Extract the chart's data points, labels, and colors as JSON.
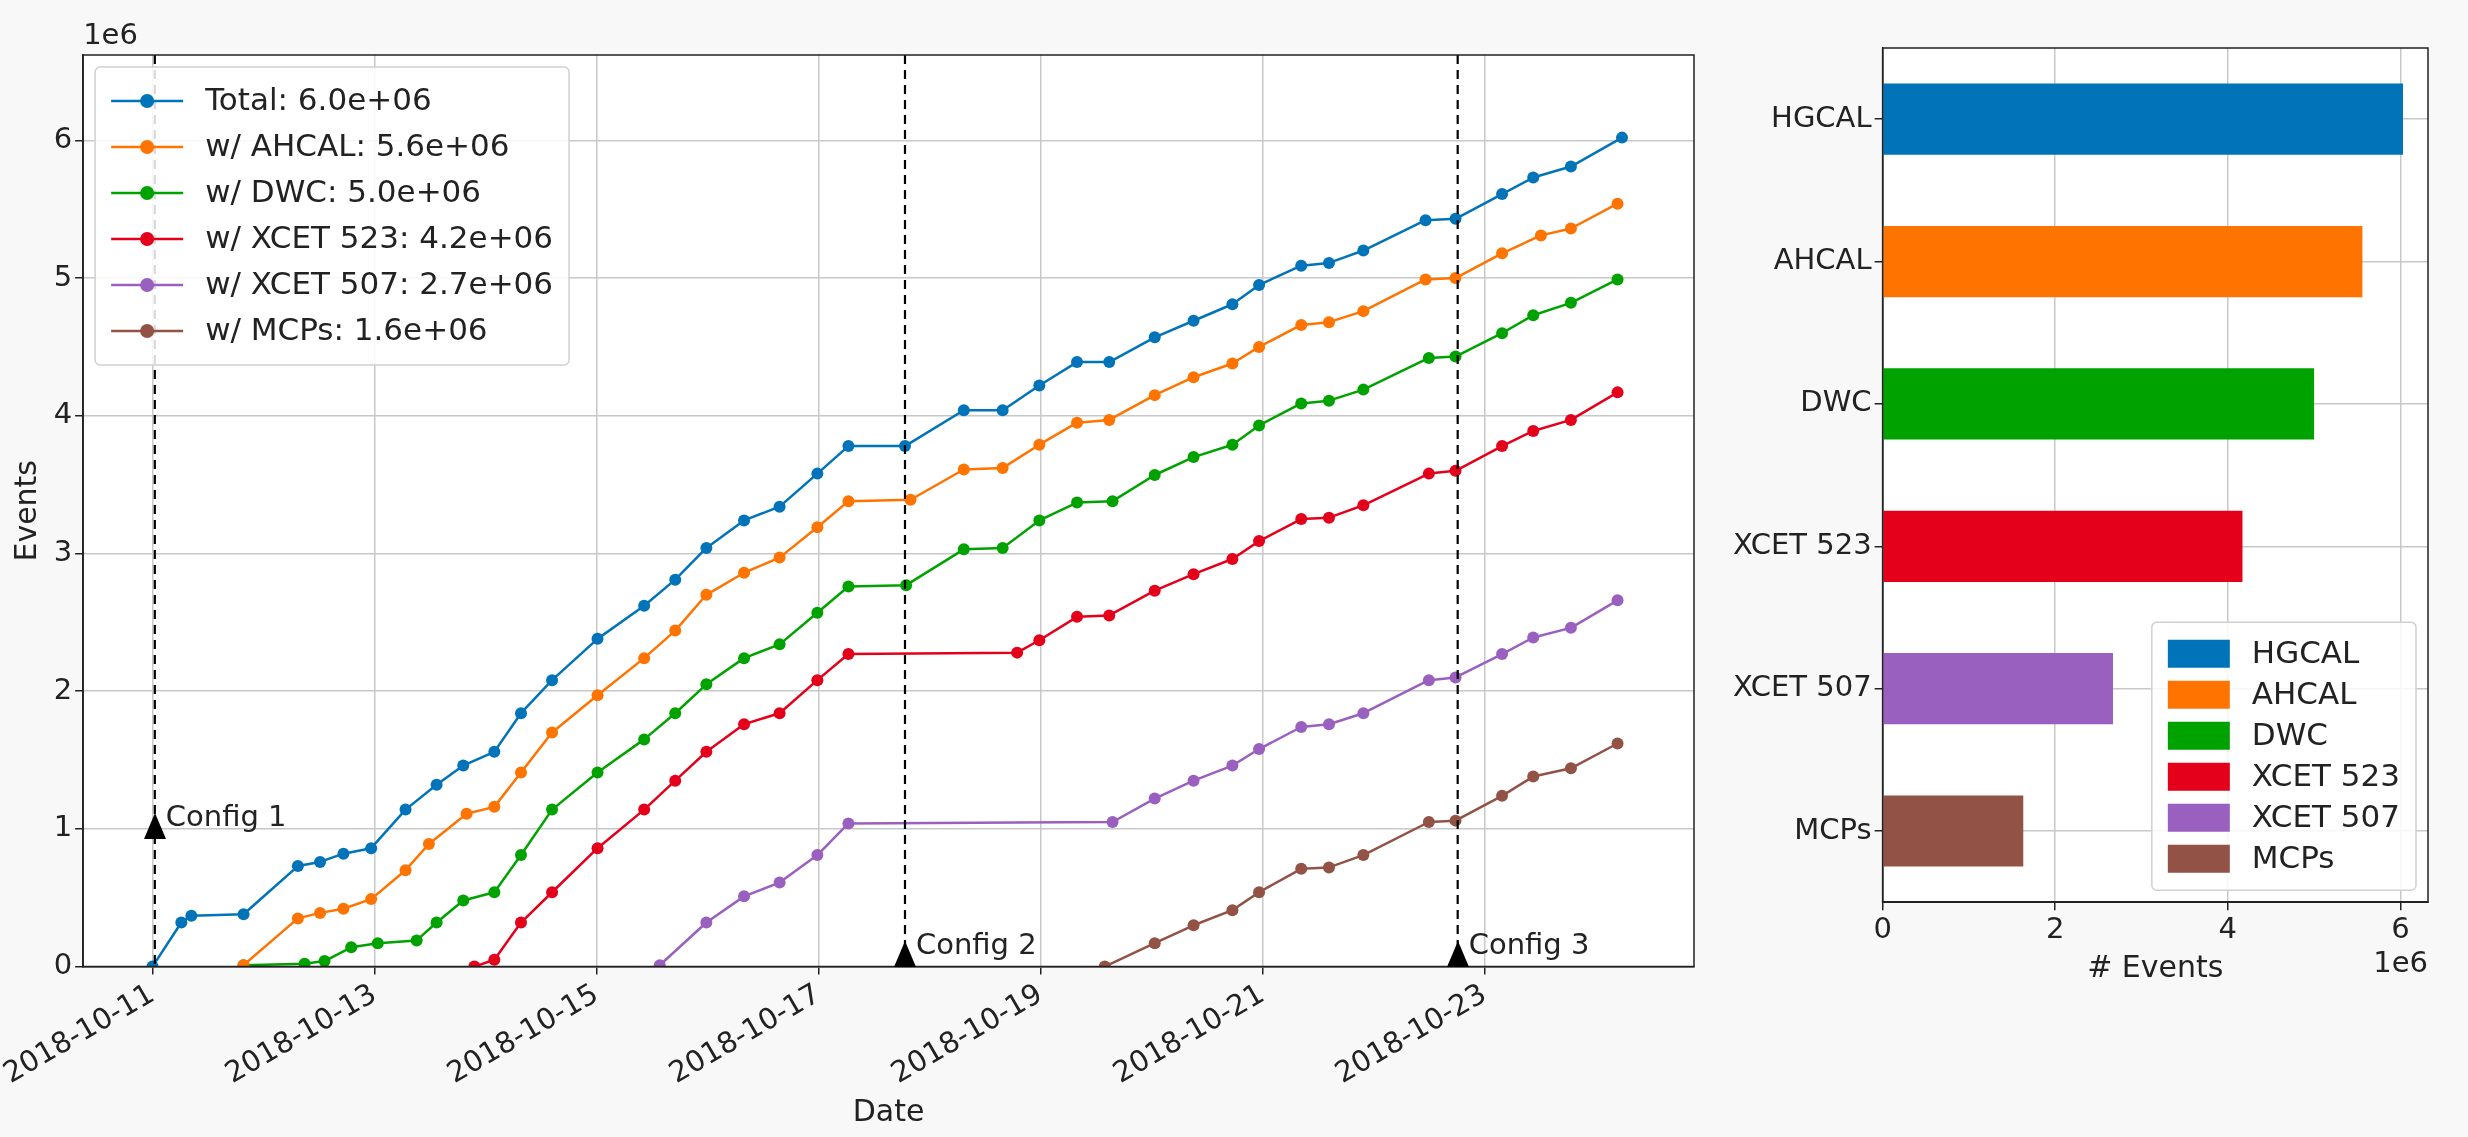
{
  "chart_data": [
    {
      "type": "line",
      "xlabel": "Date",
      "ylabel": "Events",
      "annotations": [
        "1e6",
        {
          "text": "Config 1",
          "x": "2018-10-11T00:30",
          "y": 0.93
        },
        {
          "text": "Config 2",
          "x": "2018-10-17T18:43",
          "y": 0
        },
        {
          "text": "Config 3",
          "x": "2018-10-22T18:14",
          "y": 0
        }
      ],
      "xlim": [
        "2018-10-10T09:00",
        "2018-10-24T21:20"
      ],
      "xticks": [
        "2018-10-11",
        "2018-10-13",
        "2018-10-15",
        "2018-10-17",
        "2018-10-19",
        "2018-10-21",
        "2018-10-23"
      ],
      "ylim": [
        0,
        6.62
      ],
      "yticks": [
        0,
        1,
        2,
        3,
        4,
        5,
        6
      ],
      "grid": true,
      "legend": "top left",
      "marker": "circle",
      "line_style": "solid",
      "ref_lines": [
        {
          "axis": "x",
          "value": "2018-10-11T00:30",
          "color": "#000000",
          "line_style": "dashed"
        },
        {
          "axis": "x",
          "value": "2018-10-17T18:43",
          "color": "#000000",
          "line_style": "dashed"
        },
        {
          "axis": "x",
          "value": "2018-10-22T18:14",
          "color": "#000000",
          "line_style": "dashed"
        }
      ],
      "series": [
        {
          "name": "Total: 6.0e+06",
          "color": "#0173b8",
          "x": [
            "2018-10-11T00:00",
            "2018-10-11T06:14",
            "2018-10-11T08:24",
            "2018-10-11T19:41",
            "2018-10-12T07:26",
            "2018-10-12T12:14",
            "2018-10-12T17:17",
            "2018-10-12T23:17",
            "2018-10-13T06:43",
            "2018-10-13T13:26",
            "2018-10-13T19:12",
            "2018-10-14T01:55",
            "2018-10-14T07:41",
            "2018-10-14T14:24",
            "2018-10-15T00:14",
            "2018-10-15T10:19",
            "2018-10-15T17:02",
            "2018-10-15T23:46",
            "2018-10-16T07:55",
            "2018-10-16T15:36",
            "2018-10-16T23:46",
            "2018-10-17T06:29",
            "2018-10-17T18:43",
            "2018-10-18T07:26",
            "2018-10-18T15:50",
            "2018-10-18T23:46",
            "2018-10-19T07:55",
            "2018-10-19T14:53",
            "2018-10-20T00:43",
            "2018-10-20T09:07",
            "2018-10-20T17:31",
            "2018-10-20T23:17",
            "2018-10-21T08:24",
            "2018-10-21T14:24",
            "2018-10-21T21:50",
            "2018-10-22T11:17",
            "2018-10-22T17:46",
            "2018-10-23T03:50",
            "2018-10-23T10:34",
            "2018-10-23T18:43",
            "2018-10-24T05:46"
          ],
          "values": [
            0,
            0.32,
            0.37,
            0.38,
            0.73,
            0.76,
            0.82,
            0.86,
            1.14,
            1.32,
            1.46,
            1.56,
            1.84,
            2.08,
            2.38,
            2.62,
            2.81,
            3.04,
            3.24,
            3.34,
            3.58,
            3.78,
            3.78,
            4.04,
            4.04,
            4.22,
            4.39,
            4.39,
            4.57,
            4.69,
            4.81,
            4.95,
            5.09,
            5.11,
            5.2,
            5.42,
            5.43,
            5.61,
            5.73,
            5.81,
            6.02
          ]
        },
        {
          "name": "w/ AHCAL: 5.6e+06",
          "color": "#ff7400",
          "x": [
            "2018-10-11T19:41",
            "2018-10-12T07:26",
            "2018-10-12T12:14",
            "2018-10-12T17:17",
            "2018-10-12T23:17",
            "2018-10-13T06:43",
            "2018-10-13T11:46",
            "2018-10-13T19:55",
            "2018-10-14T01:55",
            "2018-10-14T07:41",
            "2018-10-14T14:24",
            "2018-10-15T00:14",
            "2018-10-15T10:19",
            "2018-10-15T17:02",
            "2018-10-15T23:46",
            "2018-10-16T07:55",
            "2018-10-16T15:36",
            "2018-10-16T23:46",
            "2018-10-17T06:29",
            "2018-10-17T19:55",
            "2018-10-18T07:26",
            "2018-10-18T15:50",
            "2018-10-18T23:46",
            "2018-10-19T07:55",
            "2018-10-19T14:53",
            "2018-10-20T00:43",
            "2018-10-20T09:07",
            "2018-10-20T17:31",
            "2018-10-20T23:17",
            "2018-10-21T08:24",
            "2018-10-21T14:24",
            "2018-10-21T21:50",
            "2018-10-22T11:17",
            "2018-10-22T17:46",
            "2018-10-23T03:50",
            "2018-10-23T12:14",
            "2018-10-23T18:43",
            "2018-10-24T04:48"
          ],
          "values": [
            0.01,
            0.35,
            0.39,
            0.42,
            0.49,
            0.7,
            0.89,
            1.11,
            1.16,
            1.41,
            1.7,
            1.97,
            2.24,
            2.44,
            2.7,
            2.86,
            2.97,
            3.19,
            3.38,
            3.39,
            3.61,
            3.62,
            3.79,
            3.95,
            3.97,
            4.15,
            4.28,
            4.38,
            4.5,
            4.66,
            4.68,
            4.76,
            4.99,
            5.0,
            5.18,
            5.31,
            5.36,
            5.54
          ]
        },
        {
          "name": "w/ DWC: 5.0e+06",
          "color": "#00a200",
          "x": [
            "2018-10-11T19:41",
            "2018-10-12T08:53",
            "2018-10-12T13:12",
            "2018-10-12T18:58",
            "2018-10-13T00:43",
            "2018-10-13T09:07",
            "2018-10-13T13:26",
            "2018-10-13T19:12",
            "2018-10-14T01:55",
            "2018-10-14T07:41",
            "2018-10-14T14:24",
            "2018-10-15T00:14",
            "2018-10-15T10:19",
            "2018-10-15T17:02",
            "2018-10-15T23:46",
            "2018-10-16T07:55",
            "2018-10-16T15:36",
            "2018-10-16T23:46",
            "2018-10-17T06:29",
            "2018-10-17T18:58",
            "2018-10-18T07:26",
            "2018-10-18T15:50",
            "2018-10-18T23:46",
            "2018-10-19T07:55",
            "2018-10-19T15:36",
            "2018-10-20T00:43",
            "2018-10-20T09:07",
            "2018-10-20T17:31",
            "2018-10-20T23:17",
            "2018-10-21T08:24",
            "2018-10-21T14:24",
            "2018-10-21T21:50",
            "2018-10-22T12:00",
            "2018-10-22T17:46",
            "2018-10-23T03:50",
            "2018-10-23T10:34",
            "2018-10-23T18:43",
            "2018-10-24T04:48"
          ],
          "values": [
            0.01,
            0.02,
            0.04,
            0.14,
            0.17,
            0.19,
            0.32,
            0.48,
            0.54,
            0.81,
            1.14,
            1.41,
            1.65,
            1.84,
            2.05,
            2.24,
            2.34,
            2.57,
            2.76,
            2.77,
            3.03,
            3.04,
            3.24,
            3.37,
            3.38,
            3.57,
            3.7,
            3.79,
            3.93,
            4.09,
            4.11,
            4.19,
            4.42,
            4.43,
            4.6,
            4.73,
            4.82,
            4.99
          ]
        },
        {
          "name": "w/ XCET 523: 4.2e+06",
          "color": "#e4001b",
          "x": [
            "2018-10-13T21:36",
            "2018-10-14T01:55",
            "2018-10-14T07:41",
            "2018-10-14T14:24",
            "2018-10-15T00:14",
            "2018-10-15T10:19",
            "2018-10-15T17:02",
            "2018-10-15T23:46",
            "2018-10-16T07:55",
            "2018-10-16T15:36",
            "2018-10-16T23:46",
            "2018-10-17T06:29",
            "2018-10-18T18:58",
            "2018-10-18T23:46",
            "2018-10-19T07:55",
            "2018-10-19T14:53",
            "2018-10-20T00:43",
            "2018-10-20T09:07",
            "2018-10-20T17:31",
            "2018-10-20T23:17",
            "2018-10-21T08:24",
            "2018-10-21T14:24",
            "2018-10-21T21:50",
            "2018-10-22T12:00",
            "2018-10-22T17:46",
            "2018-10-23T03:50",
            "2018-10-23T10:34",
            "2018-10-23T18:43",
            "2018-10-24T04:48"
          ],
          "values": [
            0,
            0.05,
            0.32,
            0.54,
            0.86,
            1.14,
            1.35,
            1.56,
            1.76,
            1.84,
            2.08,
            2.27,
            2.28,
            2.37,
            2.54,
            2.55,
            2.73,
            2.85,
            2.96,
            3.09,
            3.25,
            3.26,
            3.35,
            3.58,
            3.6,
            3.78,
            3.89,
            3.97,
            4.17
          ]
        },
        {
          "name": "w/ XCET 507: 2.7e+06",
          "color": "#9a60bf",
          "x": [
            "2018-10-15T13:41",
            "2018-10-15T23:46",
            "2018-10-16T07:55",
            "2018-10-16T15:36",
            "2018-10-16T23:46",
            "2018-10-17T06:29",
            "2018-10-19T15:36",
            "2018-10-20T00:43",
            "2018-10-20T09:07",
            "2018-10-20T17:31",
            "2018-10-20T23:17",
            "2018-10-21T08:24",
            "2018-10-21T14:24",
            "2018-10-21T21:50",
            "2018-10-22T12:00",
            "2018-10-22T17:46",
            "2018-10-23T03:50",
            "2018-10-23T10:34",
            "2018-10-23T18:43",
            "2018-10-24T04:48"
          ],
          "values": [
            0.01,
            0.32,
            0.51,
            0.61,
            0.81,
            1.04,
            1.05,
            1.22,
            1.35,
            1.46,
            1.58,
            1.74,
            1.76,
            1.84,
            2.08,
            2.1,
            2.27,
            2.39,
            2.46,
            2.66
          ]
        },
        {
          "name": "w/ MCPs: 1.6e+06",
          "color": "#925246",
          "x": [
            "2018-10-19T13:55",
            "2018-10-20T00:43",
            "2018-10-20T09:07",
            "2018-10-20T17:31",
            "2018-10-20T23:17",
            "2018-10-21T08:24",
            "2018-10-21T14:24",
            "2018-10-21T21:50",
            "2018-10-22T12:00",
            "2018-10-22T17:46",
            "2018-10-23T03:50",
            "2018-10-23T10:34",
            "2018-10-23T18:43",
            "2018-10-24T04:48"
          ],
          "values": [
            0,
            0.17,
            0.3,
            0.41,
            0.54,
            0.71,
            0.72,
            0.81,
            1.05,
            1.06,
            1.24,
            1.38,
            1.44,
            1.62
          ]
        }
      ]
    },
    {
      "type": "bar",
      "orientation": "horizontal",
      "xlabel": "# Events",
      "annotations": [
        "1e6"
      ],
      "categories": [
        "HGCAL",
        "AHCAL",
        "DWC",
        "XCET 523",
        "XCET 507",
        "MCPs"
      ],
      "xlim": [
        0,
        6.32
      ],
      "xticks": [
        0,
        2,
        4,
        6
      ],
      "grid": true,
      "legend": "bottom right",
      "series": [
        {
          "name": "HGCAL",
          "color": "#0173b8",
          "values": [
            6.03,
            null,
            null,
            null,
            null,
            null
          ]
        },
        {
          "name": "AHCAL",
          "color": "#ff7400",
          "values": [
            null,
            5.56,
            null,
            null,
            null,
            null
          ]
        },
        {
          "name": "DWC",
          "color": "#00a200",
          "values": [
            null,
            null,
            5.0,
            null,
            null,
            null
          ]
        },
        {
          "name": "XCET 523",
          "color": "#e4001b",
          "values": [
            null,
            null,
            null,
            4.17,
            null,
            null
          ]
        },
        {
          "name": "XCET 507",
          "color": "#9a60bf",
          "values": [
            null,
            null,
            null,
            null,
            2.67,
            null
          ]
        },
        {
          "name": "MCPs",
          "color": "#925246",
          "values": [
            null,
            null,
            null,
            null,
            null,
            1.63
          ]
        }
      ]
    }
  ]
}
